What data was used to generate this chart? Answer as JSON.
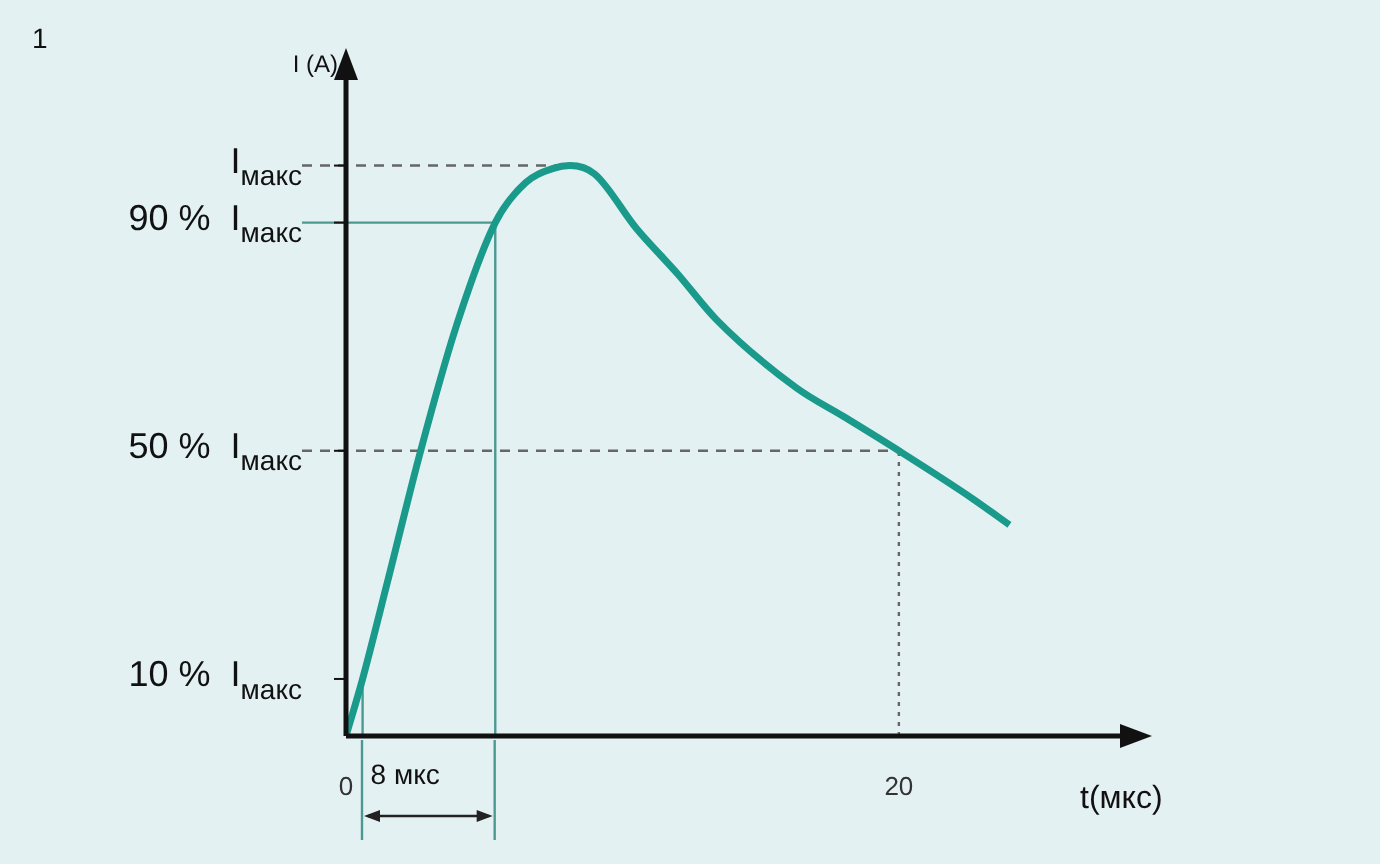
{
  "chart_data": {
    "type": "line",
    "title": "1",
    "ylabel": "I (A)",
    "xlabel": "t(мкс)",
    "x": [
      0,
      0.6,
      1.5,
      2.7,
      4,
      5.4,
      6.5,
      7.5,
      8.1,
      9,
      10.5,
      12,
      13.4,
      16.3,
      18,
      20,
      22.7,
      24
    ],
    "series": [
      {
        "color": "#1a9a8a",
        "values": [
          0,
          10,
          27,
          50,
          72,
          90,
          97,
          99.5,
          100,
          98.5,
          89,
          81,
          73,
          61,
          56,
          50,
          41.5,
          37
        ]
      }
    ],
    "xlim": [
      0,
      28
    ],
    "xticks": [
      0,
      20
    ],
    "ylim": [
      0,
      115
    ],
    "yticks": [
      {
        "value": 10,
        "label": "10 %  I$_{макс}$"
      },
      {
        "value": 50,
        "label": "50 %  I$_{макс}$"
      },
      {
        "value": 90,
        "label": "90 %  I$_{макс}$"
      },
      {
        "value": 100,
        "label": "I$_{макс}$"
      }
    ],
    "ref_lines": [
      {
        "axis": "y",
        "value": 100,
        "color": "#666666",
        "line_style": "dashed"
      },
      {
        "axis": "y",
        "value": 90,
        "color": "#4a9a92",
        "line_style": "solid"
      },
      {
        "axis": "y",
        "value": 50,
        "color": "#666666",
        "line_style": "dashed"
      },
      {
        "axis": "x",
        "value": 20,
        "color": "#666666",
        "line_style": "dotted"
      },
      {
        "axis": "x",
        "value": 5.4,
        "color": "#4a9a92",
        "line_style": "solid"
      },
      {
        "axis": "x",
        "value": 0.6,
        "color": "#4a9a92",
        "line_style": "solid"
      }
    ],
    "annotations": [
      {
        "text": "8 мкс",
        "x": 0.6,
        "y": 0
      }
    ],
    "grid": false,
    "legend": false,
    "marker": "none",
    "line_style": "solid"
  }
}
